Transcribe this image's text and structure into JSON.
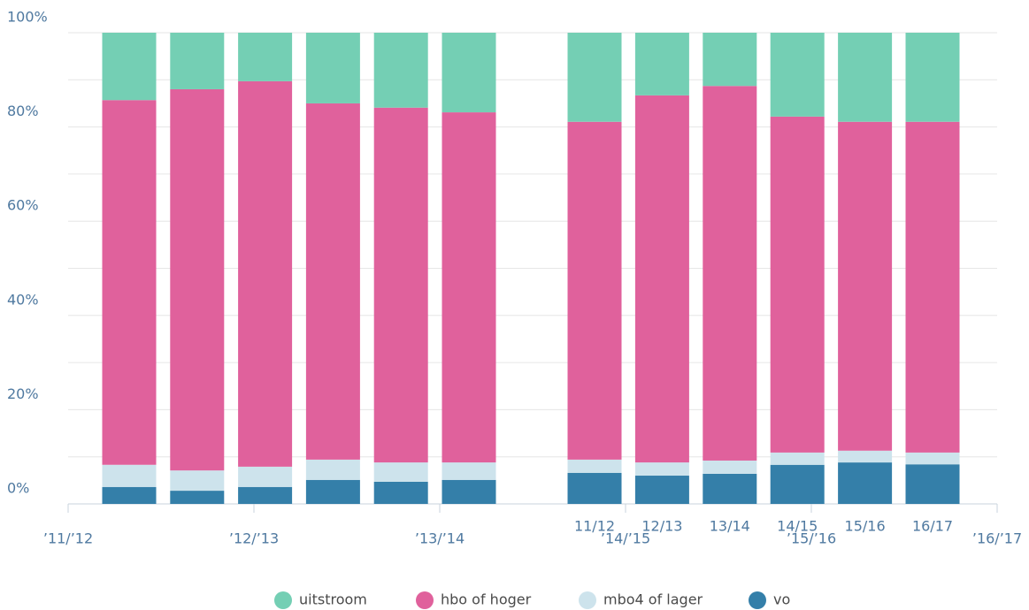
{
  "chart_data": {
    "type": "stacked_bar",
    "categories": [
      null,
      null,
      null,
      null,
      null,
      null,
      "11/12",
      "12/13",
      "13/14",
      "14/15",
      "15/16",
      "16/17"
    ],
    "axis_labels": [
      "’11/’12",
      "’12/’13",
      "’13/’14",
      "’14/’15",
      "’15/’16",
      "’16/’17"
    ],
    "series": [
      {
        "name": "uitstroom",
        "color": "#74cfb4",
        "values": [
          14.3,
          12.0,
          10.3,
          15.0,
          15.9,
          16.9,
          18.9,
          13.3,
          11.3,
          17.8,
          18.9,
          18.9
        ]
      },
      {
        "name": "hbo of hoger",
        "color": "#e0619c",
        "values": [
          77.4,
          80.9,
          81.8,
          75.6,
          75.3,
          74.3,
          71.7,
          77.9,
          79.5,
          71.3,
          69.8,
          70.2
        ]
      },
      {
        "name": "mbo4 of lager",
        "color": "#cde3ec",
        "values": [
          4.7,
          4.3,
          4.3,
          4.3,
          4.1,
          3.7,
          2.8,
          2.8,
          2.8,
          2.6,
          2.5,
          2.5
        ]
      },
      {
        "name": "vo",
        "color": "#347fa9",
        "values": [
          3.6,
          2.8,
          3.6,
          5.1,
          4.7,
          5.1,
          6.6,
          6.0,
          6.4,
          8.3,
          8.8,
          8.4
        ]
      }
    ],
    "ylim": [
      0,
      100
    ],
    "yticks": [
      {
        "value": 0,
        "label": "0%"
      },
      {
        "value": 20,
        "label": "20%"
      },
      {
        "value": 40,
        "label": "40%"
      },
      {
        "value": 60,
        "label": "60%"
      },
      {
        "value": 80,
        "label": "80%"
      },
      {
        "value": 100,
        "label": "100%"
      }
    ],
    "minor_yticks": [
      10,
      30,
      50,
      70,
      90
    ],
    "grid": true,
    "legend": "bottom"
  }
}
